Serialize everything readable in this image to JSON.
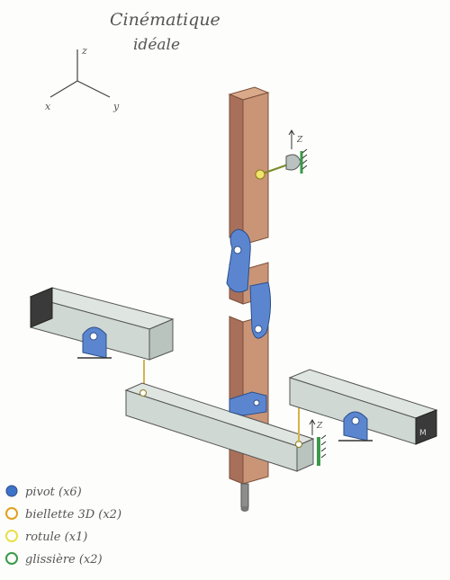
{
  "title": {
    "line1": "Cinématique",
    "line2": "idéale"
  },
  "axes": {
    "z": "z",
    "x": "x",
    "y": "y"
  },
  "slider_label_top": "Z",
  "slider_label_right": "Z",
  "end_mark": "M",
  "legend": [
    {
      "label": "pivot (x6)",
      "color": "#3d73c9"
    },
    {
      "label": "biellette 3D (x2)",
      "color": "#e0a11f"
    },
    {
      "label": "rotule (x1)",
      "color": "#e8e04a"
    },
    {
      "label": "glissière (x2)",
      "color": "#3a9a48"
    }
  ],
  "colors": {
    "wood": "#c99576",
    "wood_dark": "#a8705a",
    "beam": "#cfd8d2",
    "beam_dark": "#9aa8a0",
    "pivot": "#5b86cf",
    "link": "#d7b24a",
    "ground": "#3a3a3a"
  }
}
